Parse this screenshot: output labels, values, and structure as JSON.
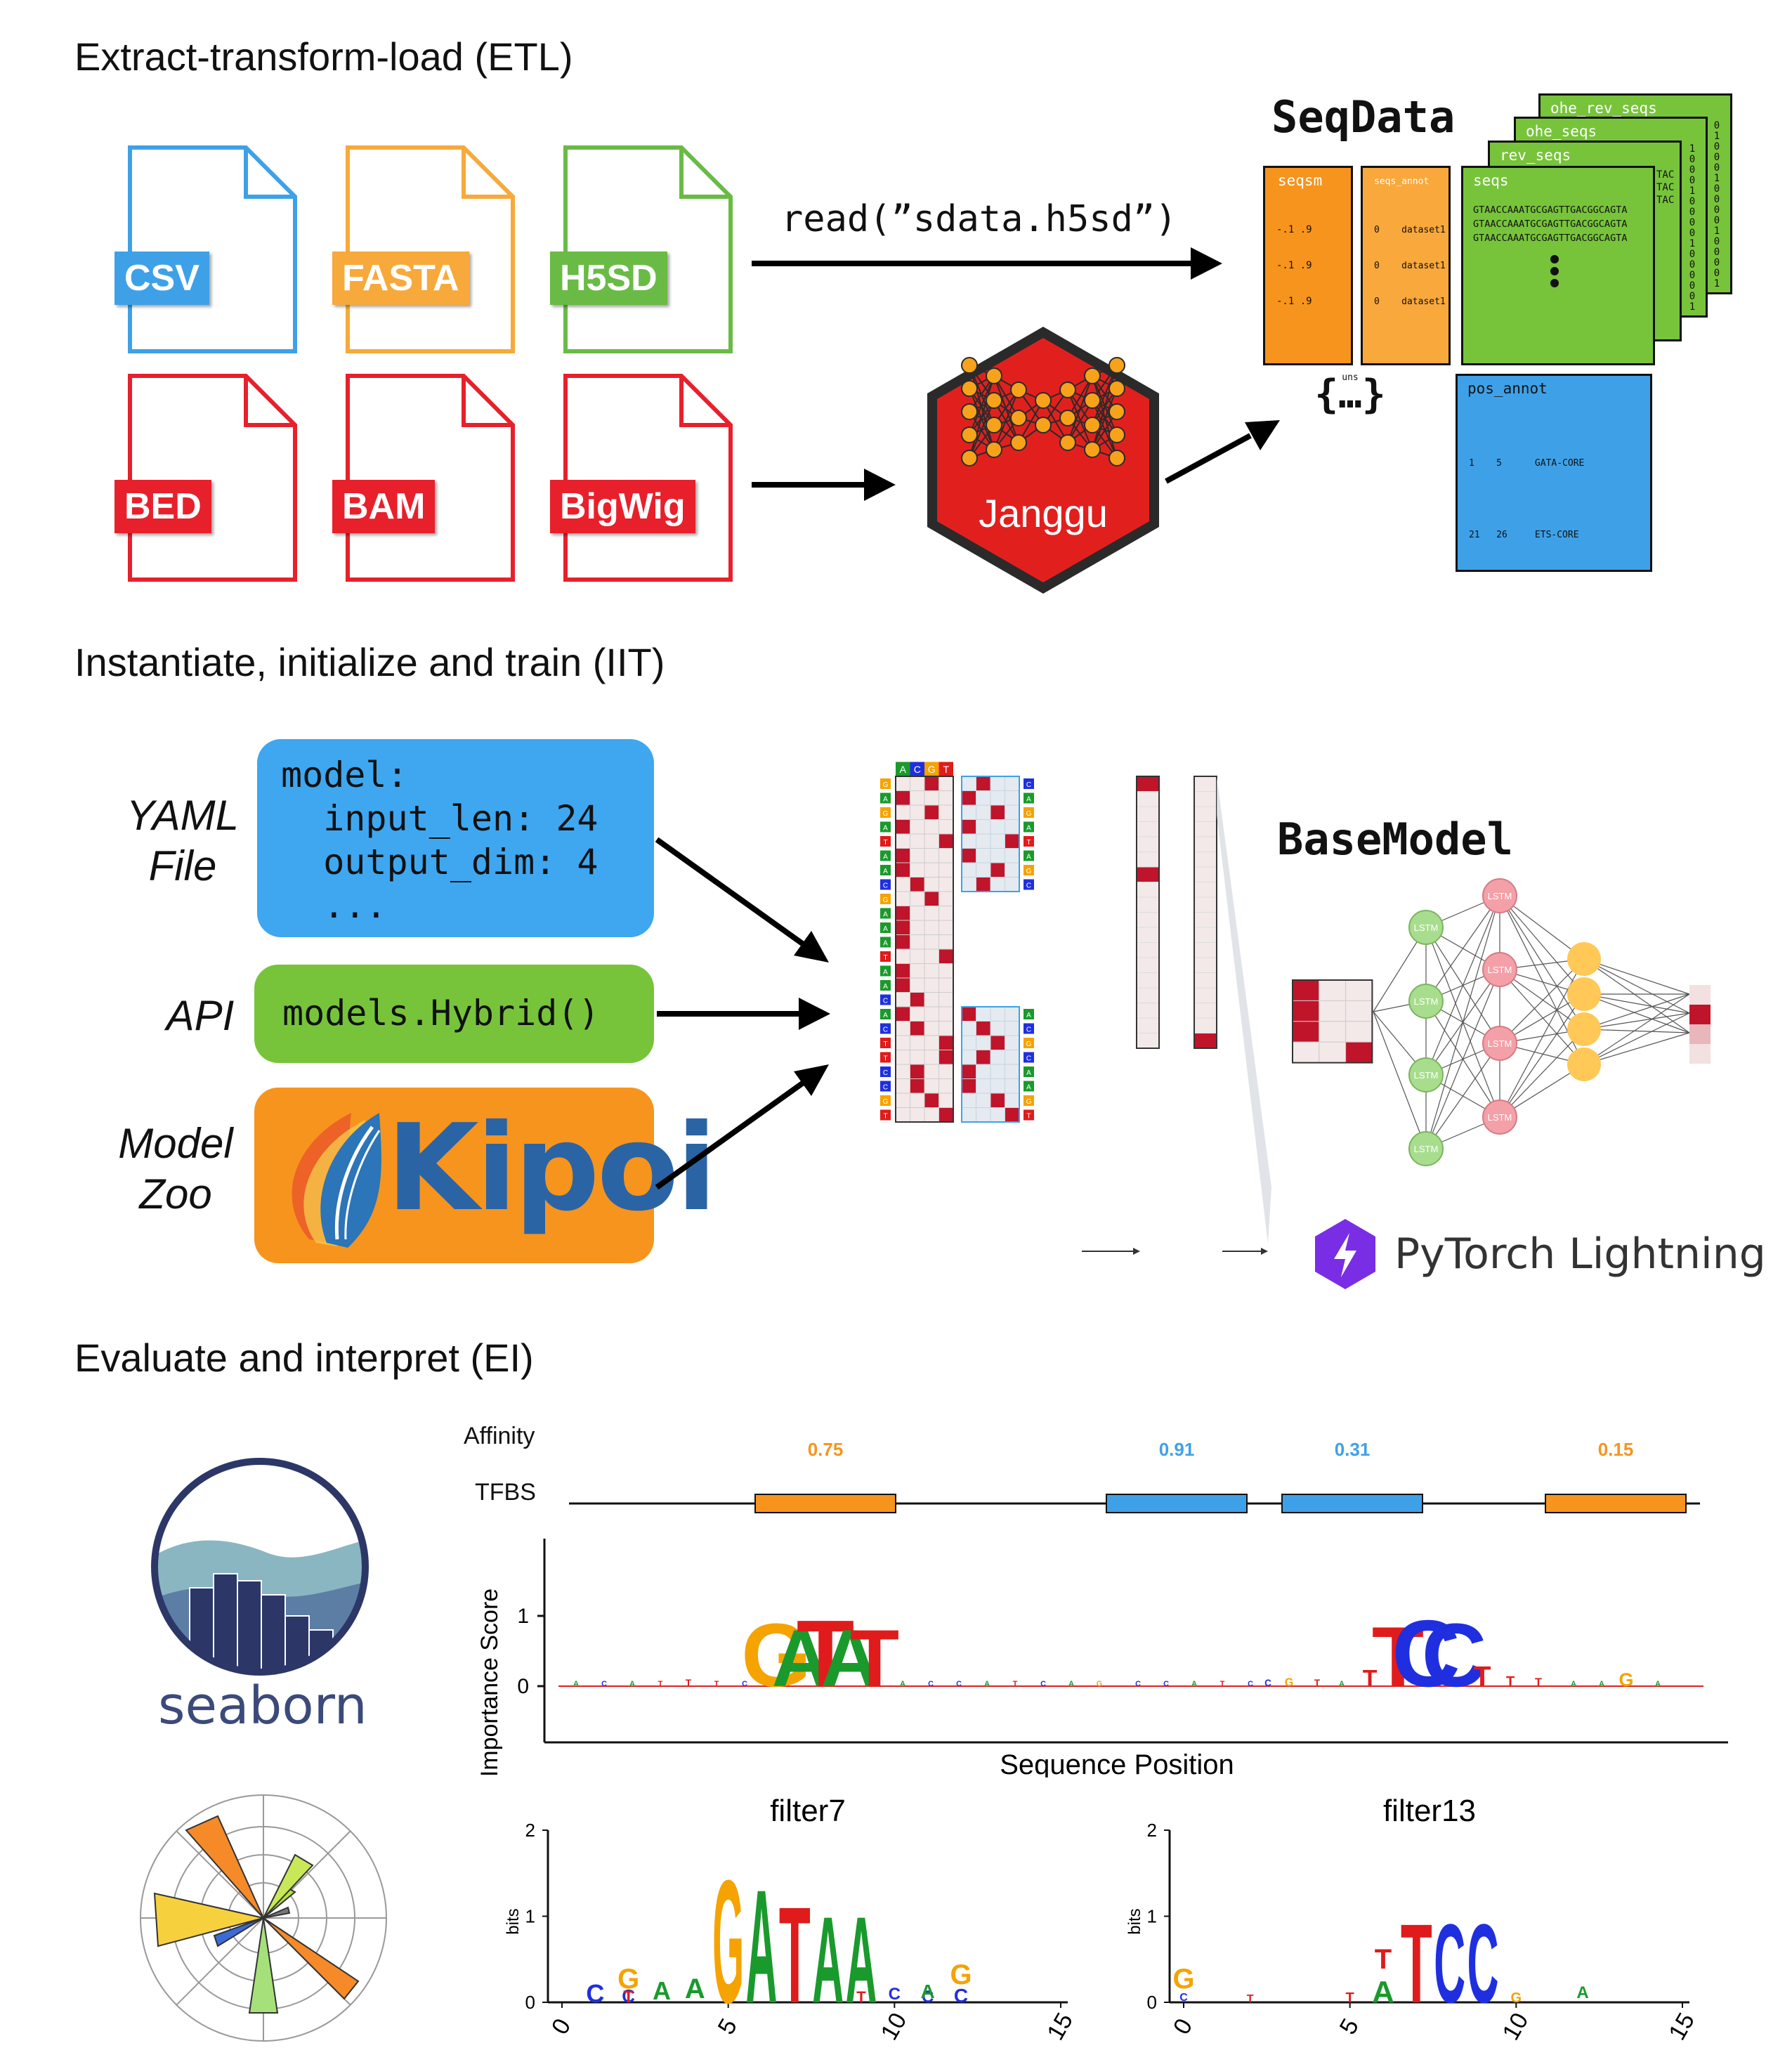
{
  "etl": {
    "title": "Extract-transform-load (ETL)",
    "files_top": [
      {
        "label": "CSV",
        "color": "#3ea1e8"
      },
      {
        "label": "FASTA",
        "color": "#f7a93b"
      },
      {
        "label": "H5SD",
        "color": "#69bb45"
      }
    ],
    "files_bottom": [
      {
        "label": "BED",
        "color": "#e8202b"
      },
      {
        "label": "BAM",
        "color": "#e8202b"
      },
      {
        "label": "BigWig",
        "color": "#e8202b"
      }
    ],
    "read_call": "read(”sdata.h5sd”)",
    "janggu_label": "Janggu",
    "seqdata": {
      "title": "SeqData",
      "seqsm_tag": "seqsm",
      "seqsm_rows": [
        "-.1 .9",
        "-.1 .9",
        "-.1 .9"
      ],
      "seqs_annot_tag": "seqs_annot",
      "seqs_annot_rows": [
        "0    dataset1",
        "0    dataset1",
        "0    dataset1"
      ],
      "seqs_tag": "seqs",
      "seqs_rows": [
        "GTAACCAAATGCGAGTTGACGGCAGTA",
        "GTAACCAAATGCGAGTTGACGGCAGTA",
        "GTAACCAAATGCGAGTTGACGGCAGTA"
      ],
      "rev_seqs_tag": "rev_seqs",
      "ohe_seqs_tag": "ohe_seqs",
      "ohe_rev_seqs_tag": "ohe_rev_seqs",
      "tac_rows": [
        "TAC",
        "TAC",
        "TAC"
      ],
      "uns_tag": "uns",
      "uns_symbol": "{…}",
      "pos_annot_tag": "pos_annot",
      "pos_annot_rows": [
        "1    5      GATA-CORE",
        "21   26     ETS-CORE"
      ]
    }
  },
  "iit": {
    "title": "Instantiate, initialize and train (IIT)",
    "yaml_label": "YAML\nFile",
    "yaml_code": "model:\n  input_len: 24\n  output_dim: 4\n  ...",
    "api_label": "API",
    "api_code": "models.Hybrid()",
    "zoo_label": "Model\nZoo",
    "kipoi_label": "Kipoi",
    "basemodel_title": "BaseModel",
    "lstm_label": "LSTM",
    "pytorch_label": "PyTorch Lightning",
    "onehot_header": [
      "A",
      "C",
      "G",
      "T"
    ],
    "sequence": [
      "G",
      "A",
      "G",
      "A",
      "T",
      "A",
      "A",
      "C",
      "G",
      "A",
      "A",
      "A",
      "T",
      "A",
      "A",
      "C",
      "A",
      "C",
      "T",
      "T",
      "C",
      "C",
      "G",
      "T"
    ],
    "top_filter_letters": [
      "C",
      "A",
      "G",
      "A",
      "T",
      "A",
      "G",
      "C"
    ],
    "bottom_filter_letters": [
      "A",
      "C",
      "G",
      "C",
      "A",
      "A",
      "G",
      "T"
    ]
  },
  "ei": {
    "title": "Evaluate and interpret (EI)",
    "seaborn_label": "seaborn",
    "affinity_label": "Affinity",
    "tfbs_label": "TFBS",
    "affinities": [
      {
        "value": "0.75",
        "color": "#f7941d"
      },
      {
        "value": "0.91",
        "color": "#3ea1e8"
      },
      {
        "value": "0.31",
        "color": "#3ea1e8"
      },
      {
        "value": "0.15",
        "color": "#f7941d"
      }
    ],
    "importance": {
      "ylabel": "Importance Score",
      "xlabel": "Sequence Position",
      "yticks": [
        "0",
        "1"
      ]
    },
    "filter7": {
      "title": "filter7",
      "ylabel": "bits",
      "yticks": [
        "0",
        "1",
        "2"
      ],
      "xticks": [
        "0",
        "5",
        "10",
        "15"
      ],
      "motif": [
        "G",
        "A",
        "T",
        "A",
        "A"
      ]
    },
    "filter13": {
      "title": "filter13",
      "ylabel": "bits",
      "yticks": [
        "0",
        "1",
        "2"
      ],
      "xticks": [
        "0",
        "5",
        "10",
        "15"
      ],
      "motif": [
        "T",
        "C",
        "C"
      ]
    }
  },
  "colors": {
    "A": "#1a9a2c",
    "C": "#1f2fe0",
    "G": "#f5a300",
    "T": "#e01b1b",
    "cell_on": "#c0142a",
    "cell_off": "#f3e9e9"
  }
}
